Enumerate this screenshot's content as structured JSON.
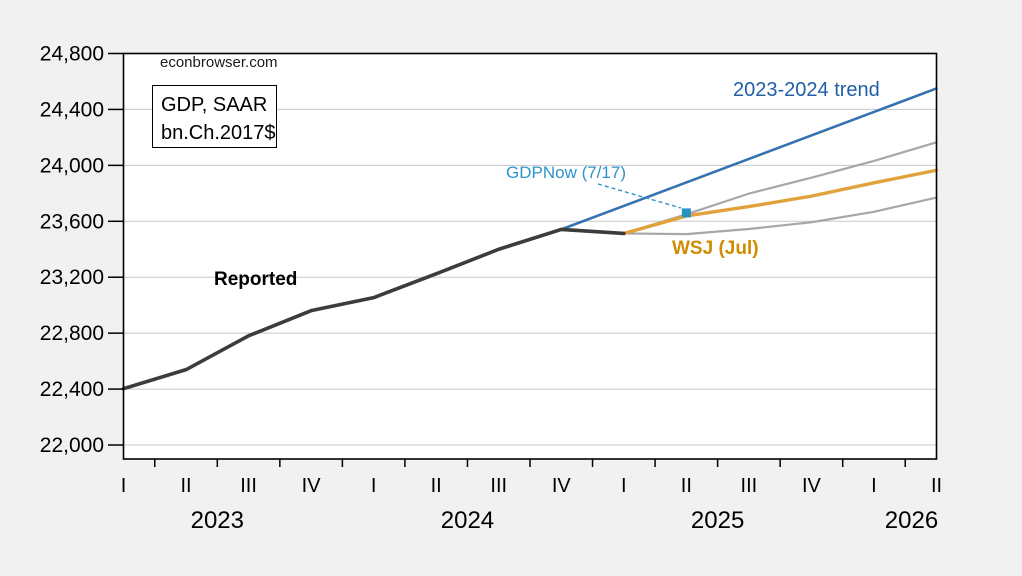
{
  "page": {
    "background": "#f1f1f1",
    "plot_background": "#ffffff",
    "gridline_color": "#c8c8c8",
    "border_color": "#000000"
  },
  "chart_data": {
    "type": "line",
    "watermark": "econbrowser.com",
    "title_box_lines": [
      "GDP, SAAR",
      "bn.Ch.2017$"
    ],
    "ylim": [
      21900,
      24800
    ],
    "y_ticks": [
      {
        "value": 22000,
        "label": "22,000"
      },
      {
        "value": 22400,
        "label": "22,400"
      },
      {
        "value": 22800,
        "label": "22,800"
      },
      {
        "value": 23200,
        "label": "23,200"
      },
      {
        "value": 23600,
        "label": "23,600"
      },
      {
        "value": 24000,
        "label": "24,000"
      },
      {
        "value": 24400,
        "label": "24,400"
      },
      {
        "value": 24800,
        "label": "24,800"
      }
    ],
    "x_quarter_labels": [
      "I",
      "II",
      "III",
      "IV",
      "I",
      "II",
      "III",
      "IV",
      "I",
      "II",
      "III",
      "IV",
      "I",
      "II"
    ],
    "x_year_labels": [
      {
        "label": "2023",
        "pos": 1.5
      },
      {
        "label": "2024",
        "pos": 5.5
      },
      {
        "label": "2025",
        "pos": 9.5
      },
      {
        "label": "2026",
        "pos": 12.6
      }
    ],
    "grid": true,
    "legend_position": "inline-annotations",
    "series": [
      {
        "name": "upper band",
        "color": "#a7a7a7",
        "width": 2.2,
        "start_index": 8,
        "values": [
          23513,
          23650,
          23798,
          23912,
          24032,
          24165
        ]
      },
      {
        "name": "lower band",
        "color": "#a7a7a7",
        "width": 2.2,
        "start_index": 8,
        "values": [
          23513,
          23508,
          23545,
          23593,
          23668,
          23770
        ]
      },
      {
        "name": "WSJ (Jul)",
        "color": "#e1a23b",
        "width": 3.4,
        "start_index": 8,
        "values": [
          23513,
          23638,
          23705,
          23780,
          23875,
          23965
        ]
      },
      {
        "name": "2023-2024 trend",
        "color": "#3572b0",
        "width": 2.6,
        "start_index": 7,
        "values": [
          23542,
          23710,
          23878,
          24046,
          24214,
          24382,
          24550
        ]
      },
      {
        "name": "Reported",
        "color": "#3c3c3c",
        "width": 3.6,
        "start_index": 0,
        "values": [
          22403,
          22539,
          22781,
          22961,
          23054,
          23224,
          23400,
          23542,
          23513
        ]
      }
    ],
    "marker_point": {
      "label": "GDPNow (7/17)",
      "quarter_index": 9,
      "value": 23660,
      "color": "#2492c4"
    }
  },
  "annotations": {
    "reported_label": "Reported",
    "trend_label": "2023-2024 trend",
    "gdpnow_label": "GDPNow (7/17)",
    "wsj_label": "WSJ (Jul)"
  },
  "colors": {
    "reported_label": "#000000",
    "trend_label": "#1f5fa8",
    "gdpnow_label": "#2e93c9",
    "wsj_label": "#d08c00",
    "leader_line": "#2e93c9"
  }
}
